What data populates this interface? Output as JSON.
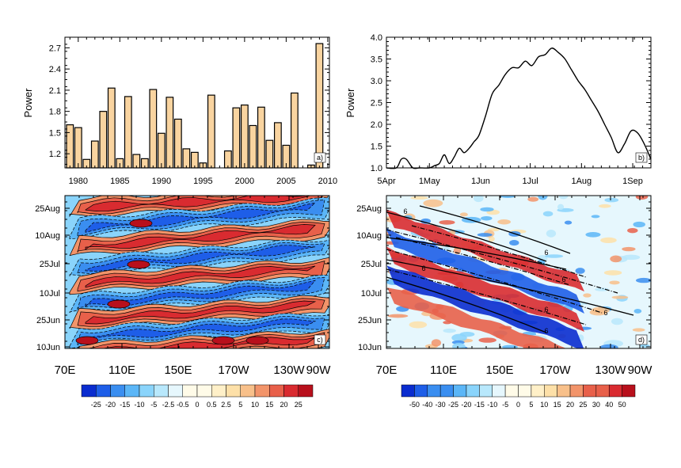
{
  "chart_data": [
    {
      "panel": "a)",
      "type": "bar",
      "ylabel": "Power",
      "ylim": [
        1.0,
        2.85
      ],
      "y_ticks": [
        "1.2",
        "1.5",
        "1.8",
        "2.1",
        "2.4",
        "2.7"
      ],
      "x_ticks": [
        "1980",
        "1985",
        "1990",
        "1995",
        "2000",
        "2005",
        "2010"
      ],
      "bar_color": "#f9d4a0",
      "x": [
        1979,
        1980,
        1981,
        1982,
        1983,
        1984,
        1985,
        1986,
        1987,
        1988,
        1989,
        1990,
        1991,
        1992,
        1993,
        1994,
        1995,
        1996,
        1997,
        1998,
        1999,
        2000,
        2001,
        2002,
        2003,
        2004,
        2005,
        2006,
        2007,
        2008,
        2009
      ],
      "values": [
        1.61,
        1.57,
        1.12,
        1.38,
        1.8,
        2.13,
        1.13,
        2.01,
        1.19,
        1.13,
        2.11,
        1.49,
        2.0,
        1.69,
        1.27,
        1.22,
        1.07,
        2.03,
        1.0,
        1.24,
        1.85,
        1.89,
        1.6,
        1.86,
        1.39,
        1.64,
        1.32,
        2.06,
        1.0,
        1.04,
        2.76
      ]
    },
    {
      "panel": "b)",
      "type": "line",
      "ylabel": "Power",
      "ylim": [
        1.0,
        4.0
      ],
      "y_ticks": [
        "1.0",
        "1.5",
        "2.0",
        "2.5",
        "3.0",
        "3.5",
        "4.0"
      ],
      "x_ticks": [
        "5Apr",
        "1May",
        "1Jun",
        "1Jul",
        "1Aug",
        "1Sep"
      ],
      "x_tick_days": [
        0,
        26,
        57,
        87,
        118,
        149
      ],
      "x_unit": "days from 5Apr",
      "xlim": [
        0,
        160
      ],
      "x": [
        0,
        6,
        9,
        12,
        16,
        20,
        26,
        29,
        32,
        35,
        38,
        41,
        44,
        47,
        50,
        53,
        56,
        60,
        64,
        68,
        72,
        76,
        80,
        84,
        88,
        92,
        96,
        100,
        104,
        108,
        112,
        116,
        120,
        124,
        128,
        132,
        136,
        140,
        144,
        148,
        152,
        156,
        160
      ],
      "values": [
        1.0,
        1.0,
        1.2,
        1.2,
        1.0,
        0.98,
        1.0,
        1.05,
        1.1,
        1.3,
        1.1,
        1.25,
        1.45,
        1.35,
        1.45,
        1.6,
        1.75,
        2.2,
        2.7,
        2.9,
        3.15,
        3.3,
        3.3,
        3.45,
        3.35,
        3.55,
        3.6,
        3.75,
        3.65,
        3.5,
        3.25,
        3.0,
        2.8,
        2.55,
        2.3,
        2.0,
        1.7,
        1.35,
        1.55,
        1.85,
        1.8,
        1.55,
        1.2
      ]
    },
    {
      "panel": "c)",
      "type": "heatmap",
      "x_ticks": [
        "70E",
        "110E",
        "150E",
        "170W",
        "130W",
        "90W"
      ],
      "y_ticks": [
        "10Jun",
        "25Jun",
        "10Jul",
        "25Jul",
        "10Aug",
        "25Aug"
      ],
      "colorbar_labels": [
        "-25",
        "-20",
        "-15",
        "-10",
        "-5",
        "-2.5",
        "-0.5",
        "0",
        "0.5",
        "2.5",
        "5",
        "10",
        "15",
        "20",
        "25"
      ]
    },
    {
      "panel": "d)",
      "type": "heatmap",
      "x_ticks": [
        "70E",
        "110E",
        "150E",
        "170W",
        "130W",
        "90W"
      ],
      "y_ticks": [
        "10Jun",
        "25Jun",
        "10Jul",
        "25Jul",
        "10Aug",
        "25Aug"
      ],
      "contour_label": "6",
      "colorbar_labels": [
        "-50",
        "-40",
        "-30",
        "-25",
        "-20",
        "-15",
        "-10",
        "-5",
        "0",
        "5",
        "10",
        "15",
        "20",
        "25",
        "30",
        "40",
        "50"
      ]
    }
  ],
  "colors": {
    "bar_fill": "#f9d4a0",
    "scale": [
      "#0a2ccf",
      "#1e5ee8",
      "#3a8ef0",
      "#5bb6f7",
      "#8ad4fb",
      "#b8e8fc",
      "#e6f7fd",
      "#fffbe8",
      "#fff0c8",
      "#fde0a8",
      "#f8c08a",
      "#f2946a",
      "#e8604a",
      "#d92b30",
      "#b8101c"
    ]
  }
}
